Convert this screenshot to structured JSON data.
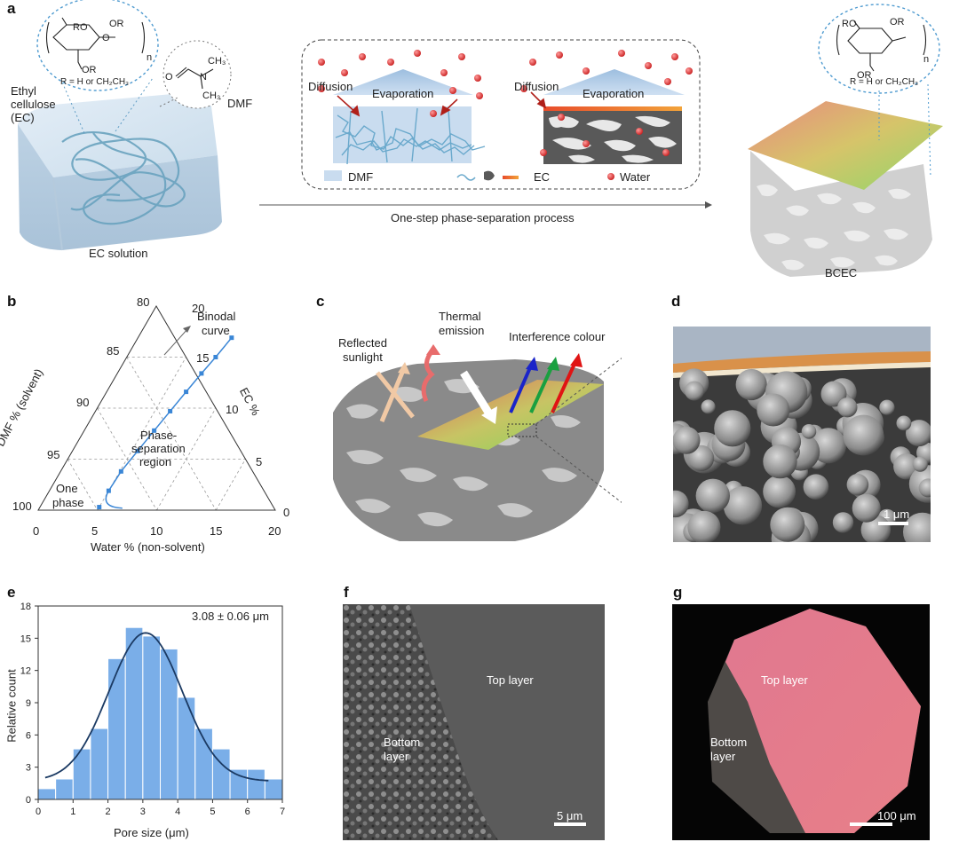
{
  "panels": {
    "a": "a",
    "b": "b",
    "c": "c",
    "d": "d",
    "e": "e",
    "f": "f",
    "g": "g"
  },
  "panel_a": {
    "ec_label_lines": [
      "Ethyl",
      "cellulose",
      "(EC)"
    ],
    "dmf_label": "DMF",
    "r_def": "R = H  or CH₂CH₃",
    "r_def_right": "R = H or CH₂CH₃",
    "ec_solution": "EC solution",
    "bcec": "BCEC",
    "process_label": "One-step phase-separation process",
    "diffusion": "Diffusion",
    "evaporation": "Evaporation",
    "legend": {
      "dmf": "DMF",
      "ec": "EC",
      "water": "Water"
    },
    "chem": {
      "ro": "RO",
      "or": "OR",
      "o": "O",
      "n": "n",
      "ch3": "CH₃",
      "n_atom": "N"
    }
  },
  "panel_b": {
    "xlabel": "Water % (non-solvent)",
    "ylabel": "DMF % (solvent)",
    "rlabel": "EC %",
    "water_ticks": [
      "0",
      "5",
      "10",
      "15",
      "20"
    ],
    "dmf_ticks": [
      "80",
      "85",
      "90",
      "95",
      "100"
    ],
    "ec_ticks": [
      "20",
      "15",
      "10",
      "5",
      "0"
    ],
    "binodal": [
      "Binodal",
      "curve"
    ],
    "one_phase": [
      "One",
      "phase"
    ],
    "sep_region": [
      "Phase-",
      "separation",
      "region"
    ]
  },
  "panel_c": {
    "reflected": [
      "Reflected",
      "sunlight"
    ],
    "thermal": [
      "Thermal",
      "emission"
    ],
    "interference": "Interference colour"
  },
  "panel_d": {
    "scale": "1 μm"
  },
  "panel_f": {
    "top": "Top layer",
    "bottom": [
      "Bottom",
      "layer"
    ],
    "scale": "5 μm"
  },
  "panel_g": {
    "top": "Top layer",
    "bottom": [
      "Bottom",
      "layer"
    ],
    "scale": "100 μm"
  },
  "chart_data": [
    {
      "type": "bar",
      "title": "",
      "xlabel": "Pore size (μm)",
      "ylabel": "Relative count",
      "annotation": "3.08 ± 0.06 μm",
      "x_bin_starts": [
        0,
        0.5,
        1,
        1.5,
        2,
        2.5,
        3,
        3.5,
        4,
        4.5,
        5,
        5.5,
        6,
        6.5
      ],
      "values": [
        1,
        1.9,
        4.7,
        6.6,
        13.1,
        16,
        15.2,
        14,
        9.5,
        6.6,
        4.7,
        2.8,
        2.8,
        1.9
      ],
      "fit_curve": {
        "type": "gaussian",
        "mean": 3.08,
        "peak": 15.5,
        "sigma": 1.05,
        "baseline": 1.7
      },
      "xlim": [
        0,
        7
      ],
      "ylim": [
        0,
        18
      ],
      "xticks": [
        "0",
        "1",
        "2",
        "3",
        "4",
        "5",
        "6",
        "7"
      ],
      "yticks": [
        "0",
        "3",
        "6",
        "9",
        "12",
        "15",
        "18"
      ],
      "colors": {
        "bar": "#7aaee8",
        "bar_edge": "#ffffff",
        "curve": "#1b3a63"
      }
    },
    {
      "type": "scatter",
      "title": "",
      "xlabel": "Water % (non-solvent)",
      "ylabel": "DMF % (solvent)",
      "series": [
        {
          "name": "Binodal curve",
          "points_water_ec": [
            [
              5,
              0.3
            ],
            [
              5,
              1.9
            ],
            [
              5.1,
              3.8
            ],
            [
              5.5,
              5.8
            ],
            [
              5.9,
              7.8
            ],
            [
              6.3,
              9.7
            ],
            [
              6.7,
              11.6
            ],
            [
              7.1,
              13.4
            ],
            [
              7.5,
              15
            ],
            [
              7.9,
              16.9
            ]
          ]
        }
      ],
      "colors": {
        "marker": "#3a86d6",
        "line": "#3a86d6"
      }
    }
  ]
}
